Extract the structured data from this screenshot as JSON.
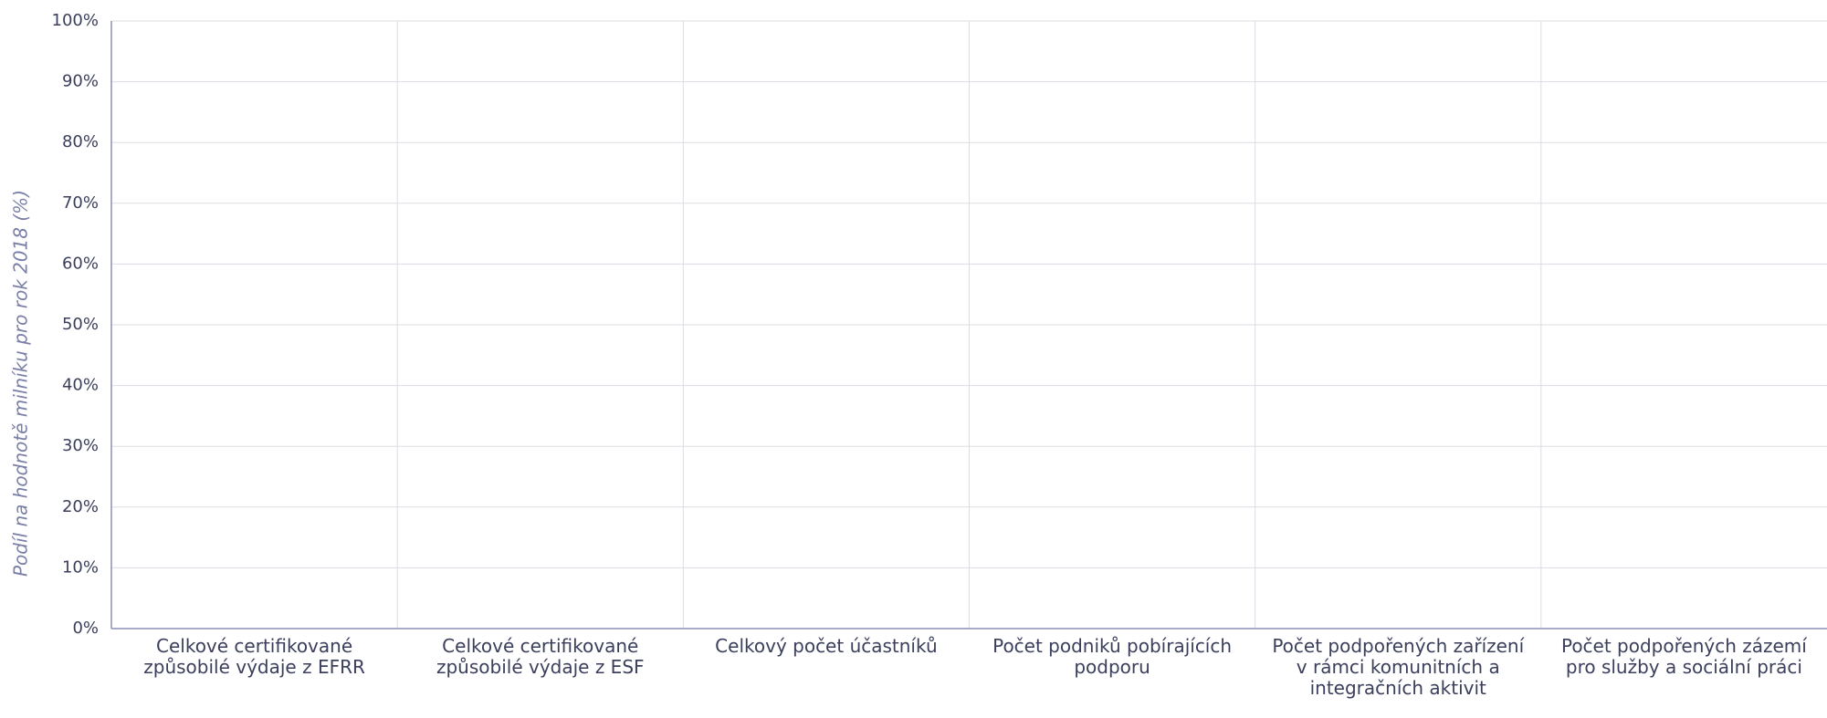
{
  "chart_data": {
    "type": "bar",
    "y_label": "Podíl na hodnotě milníku pro rok 2018 (%)",
    "categories": [
      "Celkové certifikované způsobilé výdaje z EFRR",
      "Celkové certifikované způsobilé výdaje z ESF",
      "Celkový počet účastníků",
      "Počet podniků pobírajících podporu",
      "Počet podpořených zařízení v rámci komunitních a integračních aktivit",
      "Počet podpořených zázemí pro služby a sociální práci"
    ],
    "values": [
      0,
      0,
      0,
      0,
      0,
      0
    ],
    "color": "#5b6fb5",
    "ylim": [
      0,
      100
    ],
    "yticks": [
      {
        "value": 0,
        "label": "0%"
      },
      {
        "value": 10,
        "label": "10%"
      },
      {
        "value": 20,
        "label": "20%"
      },
      {
        "value": 30,
        "label": "30%"
      },
      {
        "value": 40,
        "label": "40%"
      },
      {
        "value": 50,
        "label": "50%"
      },
      {
        "value": 60,
        "label": "60%"
      },
      {
        "value": 70,
        "label": "70%"
      },
      {
        "value": 80,
        "label": "80%"
      },
      {
        "value": 90,
        "label": "90%"
      },
      {
        "value": 100,
        "label": "100%"
      }
    ],
    "grid": true
  }
}
